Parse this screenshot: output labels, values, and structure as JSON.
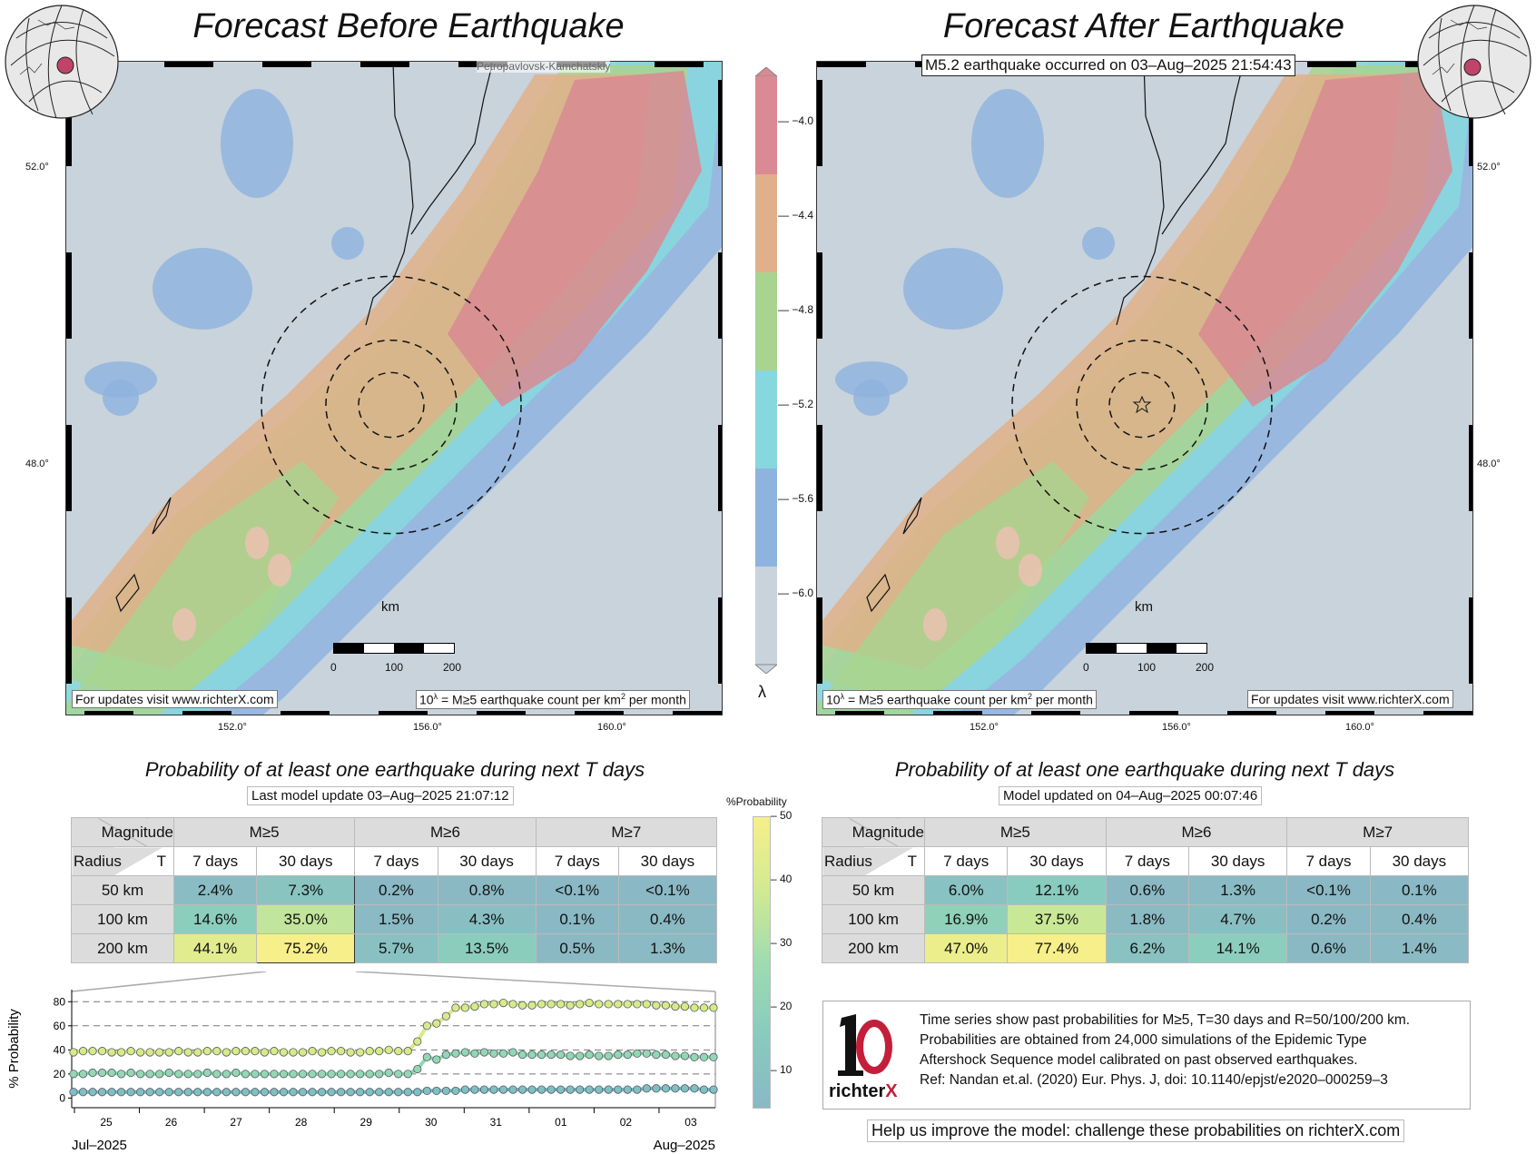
{
  "left_panel": {
    "title": "Forecast Before Earthquake",
    "city_label": "Petropavlovsk-Kamchatskiy",
    "updates_note": "For updates visit www.richterX.com",
    "unit_note_prefix": "10",
    "unit_note_sup": "λ",
    "unit_note_mid": " = M≥5 earthquake count per km",
    "unit_note_sup2": "2",
    "unit_note_suffix": " per month",
    "scale_unit": "km",
    "scale_ticks": [
      "0",
      "100",
      "200"
    ],
    "lon_labels": [
      "152.0°",
      "156.0°",
      "160.0°"
    ],
    "lat_labels": [
      "52.0°",
      "48.0°"
    ],
    "epicenter_marker": false
  },
  "right_panel": {
    "title": "Forecast After Earthquake",
    "event_banner": "M5.2 earthquake occurred on 03–Aug–2025 21:54:43",
    "updates_note": "For updates visit www.richterX.com",
    "unit_note_prefix": "10",
    "unit_note_sup": "λ",
    "unit_note_mid": " = M≥5 earthquake count per km",
    "unit_note_sup2": "2",
    "unit_note_suffix": " per month",
    "scale_unit": "km",
    "scale_ticks": [
      "0",
      "100",
      "200"
    ],
    "lon_labels": [
      "152.0°",
      "156.0°",
      "160.0°"
    ],
    "lat_labels": [
      "52.0°",
      "48.0°"
    ],
    "epicenter_marker": true
  },
  "rate_colorbar": {
    "label": "λ",
    "ticks": [
      "−4.0",
      "−4.4",
      "−4.8",
      "−5.2",
      "−5.6",
      "−6.0"
    ],
    "bands": [
      "#d98a92",
      "#e0b08a",
      "#a9d490",
      "#86d8de",
      "#8fb3df",
      "#c9d3dc"
    ]
  },
  "prob_colorbar": {
    "label": "%Probability",
    "ticks": [
      "50",
      "40",
      "30",
      "20",
      "10"
    ]
  },
  "left_table": {
    "title": "Probability of at least one earthquake during next T days",
    "update_note": "Last model update 03–Aug–2025 21:07:12",
    "corner_top": "Magnitude",
    "corner_left": "Radius",
    "corner_right": "T",
    "magnitudes": [
      "M≥5",
      "M≥6",
      "M≥7"
    ],
    "periods": [
      "7 days",
      "30 days",
      "7 days",
      "30 days",
      "7 days",
      "30 days"
    ],
    "rows": [
      {
        "radius": "50 km",
        "values": [
          "2.4%",
          "7.3%",
          "0.2%",
          "0.8%",
          "<0.1%",
          "<0.1%"
        ],
        "num": [
          2.4,
          7.3,
          0.2,
          0.8,
          0.05,
          0.05
        ]
      },
      {
        "radius": "100 km",
        "values": [
          "14.6%",
          "35.0%",
          "1.5%",
          "4.3%",
          "0.1%",
          "0.4%"
        ],
        "num": [
          14.6,
          35.0,
          1.5,
          4.3,
          0.1,
          0.4
        ]
      },
      {
        "radius": "200 km",
        "values": [
          "44.1%",
          "75.2%",
          "5.7%",
          "13.5%",
          "0.5%",
          "1.3%"
        ],
        "num": [
          44.1,
          75.2,
          5.7,
          13.5,
          0.5,
          1.3
        ]
      }
    ]
  },
  "right_table": {
    "title": "Probability of at least one earthquake during next T days",
    "update_note": "Model updated on 04–Aug–2025 00:07:46",
    "corner_top": "Magnitude",
    "corner_left": "Radius",
    "corner_right": "T",
    "magnitudes": [
      "M≥5",
      "M≥6",
      "M≥7"
    ],
    "periods": [
      "7 days",
      "30 days",
      "7 days",
      "30 days",
      "7 days",
      "30 days"
    ],
    "rows": [
      {
        "radius": "50 km",
        "values": [
          "6.0%",
          "12.1%",
          "0.6%",
          "1.3%",
          "<0.1%",
          "0.1%"
        ],
        "num": [
          6.0,
          12.1,
          0.6,
          1.3,
          0.05,
          0.1
        ]
      },
      {
        "radius": "100 km",
        "values": [
          "16.9%",
          "37.5%",
          "1.8%",
          "4.7%",
          "0.2%",
          "0.4%"
        ],
        "num": [
          16.9,
          37.5,
          1.8,
          4.7,
          0.2,
          0.4
        ]
      },
      {
        "radius": "200 km",
        "values": [
          "47.0%",
          "77.4%",
          "6.2%",
          "14.1%",
          "0.6%",
          "1.4%"
        ],
        "num": [
          47.0,
          77.4,
          6.2,
          14.1,
          0.6,
          1.4
        ]
      }
    ]
  },
  "chart_data": {
    "type": "line",
    "title": "",
    "ylabel": "% Probability",
    "xlabel": "",
    "ylim": [
      -8,
      90
    ],
    "yticks": [
      "0",
      "20",
      "40",
      "60",
      "80"
    ],
    "ytick_values": [
      0,
      20,
      40,
      60,
      80
    ],
    "xticks": [
      "25",
      "26",
      "27",
      "28",
      "29",
      "30",
      "31",
      "01",
      "02",
      "03"
    ],
    "month_left": "Jul–2025",
    "month_right": "Aug–2025",
    "grid": "dashed horizontal at 20, 40, 60, 80",
    "series": [
      {
        "name": "R=200 km",
        "color": "#d7ea8a",
        "values": [
          38,
          39,
          39,
          39,
          38,
          38,
          39,
          38,
          38,
          38,
          38,
          39,
          38,
          38,
          39,
          39,
          38,
          39,
          39,
          39,
          38,
          39,
          38,
          38,
          38,
          39,
          38,
          39,
          39,
          38,
          38,
          39,
          39,
          40,
          39,
          39,
          47,
          60,
          62,
          68,
          75,
          75,
          76,
          78,
          78,
          79,
          78,
          77,
          77,
          78,
          78,
          78,
          77,
          78,
          79,
          78,
          78,
          78,
          78,
          78,
          78,
          77,
          77,
          76,
          76,
          75,
          75,
          75
        ]
      },
      {
        "name": "R=100 km",
        "color": "#93d7b3",
        "values": [
          20,
          20,
          21,
          21,
          21,
          20,
          21,
          20,
          20,
          20,
          21,
          20,
          20,
          20,
          21,
          20,
          20,
          21,
          20,
          20,
          20,
          20,
          20,
          20,
          20,
          20,
          20,
          20,
          20,
          20,
          20,
          20,
          20,
          21,
          20,
          20,
          24,
          34,
          32,
          36,
          37,
          38,
          37,
          38,
          37,
          37,
          38,
          36,
          36,
          36,
          36,
          36,
          35,
          35,
          36,
          35,
          35,
          36,
          36,
          37,
          37,
          36,
          36,
          35,
          35,
          34,
          34,
          34
        ]
      },
      {
        "name": "R=50 km",
        "color": "#7fc0c2",
        "values": [
          5,
          5,
          5,
          5,
          5,
          5,
          5,
          5,
          5,
          5,
          5,
          5,
          5,
          5,
          5,
          5,
          5,
          5,
          5,
          5,
          5,
          5,
          5,
          5,
          5,
          5,
          5,
          5,
          5,
          5,
          5,
          5,
          5,
          5,
          5,
          5,
          5,
          6,
          6,
          6,
          6,
          7,
          7,
          7,
          7,
          7,
          7,
          7,
          7,
          7,
          7,
          7,
          7,
          7,
          7,
          7,
          7,
          7,
          7,
          7,
          8,
          8,
          8,
          8,
          8,
          8,
          7,
          7
        ]
      }
    ]
  },
  "info_box": {
    "logo_text": "richter",
    "logo_text_x": "X",
    "lines": [
      "Time series show past probabilities for M≥5, T=30 days and R=50/100/200 km.",
      "Probabilities are obtained from 24,000 simulations of the Epidemic Type",
      "Aftershock Sequence model calibrated on past observed earthquakes.",
      "Ref: Nandan et.al. (2020) Eur. Phys. J, doi: 10.1140/epjst/e2020–000259–3"
    ]
  },
  "challenge_link": "Help us improve the model: challenge these probabilities on richterX.com"
}
